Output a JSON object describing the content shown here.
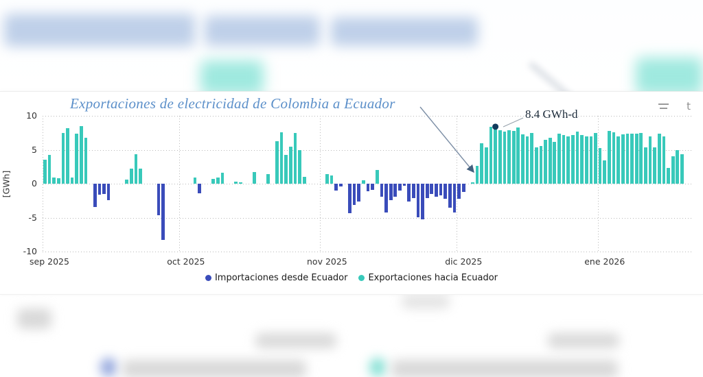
{
  "chart": {
    "toolbar_fragment": "t"
  },
  "chart_data": {
    "type": "bar",
    "title": "Exportaciones de electricidad de Colombia a Ecuador",
    "ylabel": "[GWh]",
    "ylim": [
      -10,
      10
    ],
    "yticks": [
      10,
      5,
      0,
      -5,
      -10
    ],
    "grid": "dotted",
    "legend_position": "bottom-center",
    "unit": "GWh per day",
    "series": [
      {
        "name": "Importaciones desde Ecuador",
        "color": "#3a4cba",
        "sign": "negative"
      },
      {
        "name": "Exportaciones hacia Ecuador",
        "color": "#38c9ba",
        "sign": "positive"
      }
    ],
    "annotation": {
      "text": "8.4 GWh-d",
      "month": "dic 2025",
      "day": 9,
      "value": 8.4,
      "dot_color": "#113a5c"
    },
    "months": [
      {
        "label": "sep 2025",
        "values": [
          3.5,
          4.2,
          0.9,
          0.8,
          7.5,
          8.2,
          0.9,
          7.4,
          8.5,
          6.8,
          0,
          -3.4,
          -1.6,
          -1.5,
          -2.4,
          0,
          0,
          0,
          0.6,
          2.2,
          4.3,
          2.2,
          0,
          0,
          0,
          -4.6,
          -8.3,
          0,
          0,
          0
        ]
      },
      {
        "label": "oct 2025",
        "values": [
          0,
          0,
          0,
          0.9,
          -1.4,
          0,
          0,
          0.7,
          0.9,
          1.6,
          0,
          0,
          0.3,
          0.2,
          0,
          0,
          1.7,
          0,
          0,
          1.4,
          0,
          6.3,
          7.6,
          4.2,
          5.5,
          7.5,
          5.0,
          1.0,
          0,
          0,
          0
        ]
      },
      {
        "label": "nov 2025",
        "values": [
          0,
          1.4,
          1.2,
          -1.0,
          -0.4,
          0,
          -4.3,
          -3.1,
          -2.6,
          0.5,
          -1.1,
          -0.9,
          2.0,
          -1.9,
          -4.2,
          -2.4,
          -1.9,
          -1.0,
          -0.3,
          -2.6,
          -2.1,
          -4.9,
          -5.3,
          -2.1,
          -1.5,
          -1.9,
          -1.7,
          -2.2,
          -3.5,
          -4.2
        ]
      },
      {
        "label": "dic 2025",
        "values": [
          -2.2,
          -1.2,
          0,
          0.2,
          2.6,
          6.0,
          5.4,
          8.4,
          8.4,
          7.9,
          7.7,
          7.9,
          7.8,
          8.3,
          7.3,
          7.0,
          7.5,
          5.4,
          5.6,
          6.5,
          6.8,
          6.2,
          7.4,
          7.2,
          7.0,
          7.2,
          7.7,
          7.2,
          7.0,
          7.0,
          7.5
        ]
      },
      {
        "label": "ene 2026",
        "values": [
          5.3,
          3.4,
          7.8,
          7.6,
          7.0,
          7.3,
          7.4,
          7.4,
          7.4,
          7.5,
          5.4,
          7.0,
          5.4,
          7.4,
          7.0,
          2.3,
          4.0,
          4.9,
          4.3,
          0,
          0
        ]
      }
    ]
  }
}
